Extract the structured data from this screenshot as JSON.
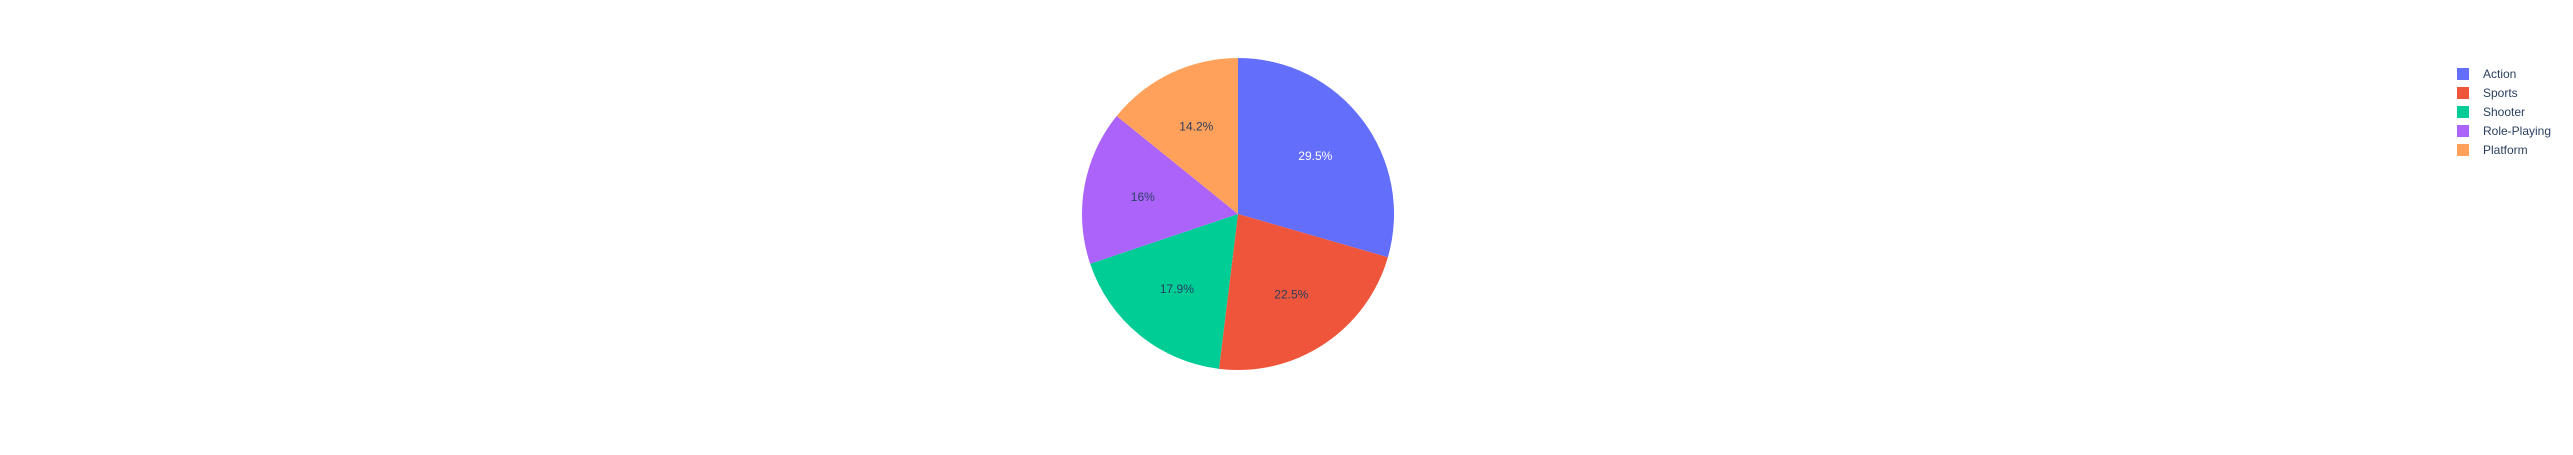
{
  "chart_data": {
    "type": "pie",
    "title": "",
    "categories": [
      "Action",
      "Sports",
      "Shooter",
      "Role-Playing",
      "Platform"
    ],
    "values": [
      29.5,
      22.5,
      17.9,
      16,
      14.2
    ],
    "labels": [
      "29.5%",
      "22.5%",
      "17.9%",
      "16%",
      "14.2%"
    ],
    "colors": [
      "#636efa",
      "#ef553b",
      "#00cc96",
      "#ab63fa",
      "#ffa15a"
    ],
    "label_colors": [
      "#ffffff",
      "#2a3f5f",
      "#2a3f5f",
      "#2a3f5f",
      "#2a3f5f"
    ],
    "legend": {
      "placement": "top-right",
      "entries": [
        "Action",
        "Sports",
        "Shooter",
        "Role-Playing",
        "Platform"
      ]
    },
    "sort_descending": true,
    "direction": "clockwise",
    "start": "top"
  }
}
